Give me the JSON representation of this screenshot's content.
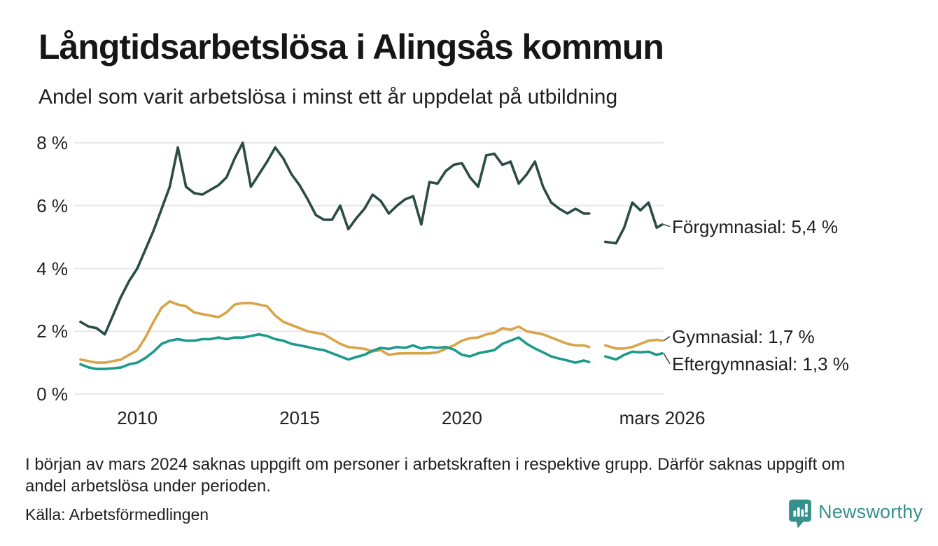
{
  "header": {
    "title": "Långtidsarbetslösa i Alingsås kommun",
    "subtitle": "Andel som varit arbetslösa i minst ett år uppdelat på utbildning"
  },
  "chart_data": {
    "type": "line",
    "title": "Långtidsarbetslösa i Alingsås kommun",
    "subtitle": "Andel som varit arbetslösa i minst ett år uppdelat på utbildning",
    "x_unit": "decimal_year",
    "xlim": [
      2008.1,
      2026.17
    ],
    "ylim": [
      0,
      8
    ],
    "grid": "horizontal",
    "legend_position": "right-end-labels",
    "colors": {
      "grid": "#e9e9ec",
      "connector": "#4a4a4a",
      "text": "#1f1f1f"
    },
    "y_ticks": [
      {
        "value": 0,
        "label": "0 %"
      },
      {
        "value": 2,
        "label": "2 %"
      },
      {
        "value": 4,
        "label": "4 %"
      },
      {
        "value": 6,
        "label": "6 %"
      },
      {
        "value": 8,
        "label": "8 %"
      }
    ],
    "x_ticks": [
      {
        "value": 2010,
        "label": "2010"
      },
      {
        "value": 2015,
        "label": "2015"
      },
      {
        "value": 2020,
        "label": "2020"
      },
      {
        "value": 2026.17,
        "label": "mars 2026"
      }
    ],
    "x": [
      2008.25,
      2008.5,
      2008.75,
      2009,
      2009.25,
      2009.5,
      2009.75,
      2010,
      2010.25,
      2010.5,
      2010.75,
      2011,
      2011.25,
      2011.5,
      2011.75,
      2012,
      2012.25,
      2012.5,
      2012.75,
      2013,
      2013.25,
      2013.5,
      2013.75,
      2014,
      2014.25,
      2014.5,
      2014.75,
      2015,
      2015.25,
      2015.5,
      2015.75,
      2016,
      2016.25,
      2016.5,
      2016.75,
      2017,
      2017.25,
      2017.5,
      2017.75,
      2018,
      2018.25,
      2018.5,
      2018.75,
      2019,
      2019.25,
      2019.5,
      2019.75,
      2020,
      2020.25,
      2020.5,
      2020.75,
      2021,
      2021.25,
      2021.5,
      2021.75,
      2022,
      2022.25,
      2022.5,
      2022.75,
      2023,
      2023.25,
      2023.5,
      2023.75,
      2023.92,
      2024.17,
      2024.42,
      2024.75,
      2025,
      2025.25,
      2025.5,
      2025.75,
      2026,
      2026.17
    ],
    "series": [
      {
        "name": "Förgymnasial",
        "end_label": "Förgymnasial: 5,4 %",
        "last_value_text": "5,4 %",
        "color": "#2b4c45",
        "values": [
          2.3,
          2.15,
          2.1,
          1.9,
          2.5,
          3.1,
          3.6,
          4.0,
          4.6,
          5.2,
          5.9,
          6.6,
          7.85,
          6.6,
          6.4,
          6.35,
          6.5,
          6.65,
          6.9,
          7.5,
          8.0,
          6.6,
          7.0,
          7.4,
          7.85,
          7.5,
          7.0,
          6.65,
          6.2,
          5.7,
          5.55,
          5.55,
          6.0,
          5.25,
          5.6,
          5.9,
          6.35,
          6.15,
          5.75,
          6.0,
          6.2,
          6.3,
          5.4,
          6.75,
          6.7,
          7.1,
          7.3,
          7.35,
          6.9,
          6.6,
          7.6,
          7.65,
          7.3,
          7.4,
          6.7,
          7.0,
          7.4,
          6.6,
          6.1,
          5.9,
          5.75,
          5.9,
          5.75,
          5.75,
          null,
          4.85,
          4.8,
          5.3,
          6.1,
          5.85,
          6.1,
          5.3,
          5.4
        ]
      },
      {
        "name": "Gymnasial",
        "end_label": "Gymnasial: 1,7 %",
        "last_value_text": "1,7 %",
        "color": "#d8a449",
        "values": [
          1.1,
          1.05,
          1.0,
          1.0,
          1.05,
          1.1,
          1.25,
          1.4,
          1.8,
          2.3,
          2.75,
          2.95,
          2.85,
          2.8,
          2.6,
          2.55,
          2.5,
          2.45,
          2.6,
          2.85,
          2.9,
          2.9,
          2.85,
          2.8,
          2.5,
          2.3,
          2.2,
          2.1,
          2.0,
          1.95,
          1.9,
          1.75,
          1.6,
          1.5,
          1.47,
          1.44,
          1.36,
          1.4,
          1.25,
          1.29,
          1.3,
          1.3,
          1.3,
          1.3,
          1.33,
          1.44,
          1.55,
          1.7,
          1.78,
          1.8,
          1.9,
          1.95,
          2.1,
          2.05,
          2.15,
          2.0,
          1.95,
          1.9,
          1.8,
          1.7,
          1.6,
          1.55,
          1.55,
          1.5,
          null,
          1.55,
          1.45,
          1.45,
          1.5,
          1.6,
          1.7,
          1.73,
          1.7
        ]
      },
      {
        "name": "Eftergymnasial",
        "end_label": "Eftergymnasial: 1,3 %",
        "last_value_text": "1,3 %",
        "color": "#1c9a8c",
        "values": [
          0.95,
          0.85,
          0.8,
          0.8,
          0.82,
          0.85,
          0.95,
          1.0,
          1.15,
          1.35,
          1.6,
          1.7,
          1.75,
          1.7,
          1.7,
          1.75,
          1.75,
          1.8,
          1.75,
          1.8,
          1.8,
          1.85,
          1.9,
          1.85,
          1.75,
          1.7,
          1.6,
          1.55,
          1.5,
          1.44,
          1.4,
          1.3,
          1.2,
          1.1,
          1.18,
          1.25,
          1.38,
          1.47,
          1.44,
          1.5,
          1.47,
          1.55,
          1.45,
          1.5,
          1.47,
          1.5,
          1.42,
          1.25,
          1.2,
          1.3,
          1.35,
          1.4,
          1.6,
          1.7,
          1.8,
          1.6,
          1.45,
          1.33,
          1.2,
          1.13,
          1.07,
          1.0,
          1.07,
          1.02,
          null,
          1.2,
          1.1,
          1.25,
          1.35,
          1.33,
          1.35,
          1.25,
          1.3
        ]
      }
    ]
  },
  "footnote": {
    "line1": "I början av mars 2024 saknas uppgift om personer i arbetskraften i respektive grupp. Därför saknas uppgift om",
    "line2": "andel arbetslösa under perioden."
  },
  "source": {
    "text": "Källa: Arbetsförmedlingen"
  },
  "logo": {
    "text": "Newsworthy",
    "color": "#34918b"
  }
}
